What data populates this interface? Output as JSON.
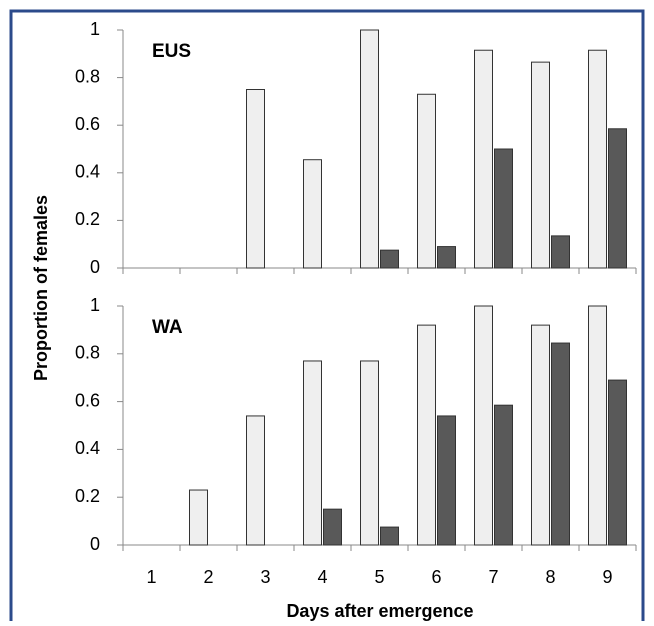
{
  "chart_data": [
    {
      "type": "bar",
      "annotation": "EUS",
      "y_label": "Proportion of females",
      "series": [
        {
          "color": "#efefef",
          "values": [
            0,
            0,
            0.75,
            0.455,
            1,
            0.73,
            0.915,
            0.865,
            0.915
          ]
        },
        {
          "color": "#595959",
          "values": [
            0,
            0,
            0,
            0,
            0.075,
            0.09,
            0.5,
            0.135,
            0.585
          ]
        }
      ],
      "ylim": [
        0,
        1
      ],
      "yticks": [
        0,
        0.2,
        0.4,
        0.6,
        0.8,
        1
      ]
    },
    {
      "type": "bar",
      "annotation": "WA",
      "x_label": "Days after emergence",
      "categories": [
        "1",
        "2",
        "3",
        "4",
        "5",
        "6",
        "7",
        "8",
        "9"
      ],
      "series": [
        {
          "color": "#efefef",
          "values": [
            0,
            0.23,
            0.54,
            0.77,
            0.77,
            0.92,
            1,
            0.92,
            1
          ]
        },
        {
          "color": "#595959",
          "values": [
            0,
            0,
            0,
            0.15,
            0.075,
            0.54,
            0.585,
            0.845,
            0.69
          ]
        }
      ],
      "ylim": [
        0,
        1
      ],
      "yticks": [
        0,
        0.2,
        0.4,
        0.6,
        0.8,
        1
      ]
    }
  ]
}
